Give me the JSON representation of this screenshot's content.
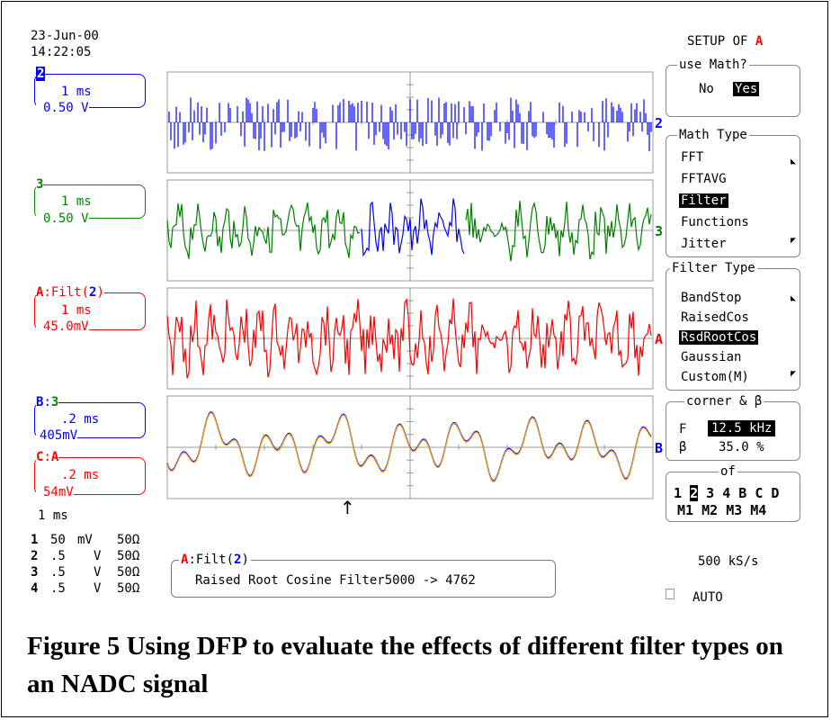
{
  "header": {
    "date": "23-Jun-00",
    "time": "14:22:05"
  },
  "setup": {
    "prefix": "SETUP OF",
    "channel": "A"
  },
  "colors": {
    "ch2": "#0000ff",
    "ch3": "#008000",
    "chA": "#ff0000",
    "chB": "#0000ff",
    "chC": "#ff0000",
    "math_overlay": "#e8a020"
  },
  "traces": [
    {
      "id": "2",
      "time": "1 ms",
      "volts": "0.50 V",
      "marker": "2"
    },
    {
      "id": "3",
      "time": "1 ms",
      "volts": "0.50 V",
      "marker": "3"
    },
    {
      "id": "A",
      "label_prefix": ":Filt(",
      "label_src": "2",
      "label_suffix": ")",
      "time": "1 ms",
      "volts": "45.0mV",
      "marker": "A"
    },
    {
      "id": "B",
      "label_sep": ":",
      "label_src": "3",
      "time": ".2 ms",
      "volts": "405mV",
      "marker": "B"
    },
    {
      "id": "C",
      "label_sep": ":",
      "label_src": "A",
      "time": ".2 ms",
      "volts": "54mV",
      "marker": "C"
    }
  ],
  "timebase": "1 ms",
  "channels": [
    {
      "n": "1",
      "v": "50",
      "unit": "mV",
      "imp": "50Ω"
    },
    {
      "n": "2",
      "v": ".5",
      "unit": "V",
      "imp": "50Ω"
    },
    {
      "n": "3",
      "v": ".5",
      "unit": "V",
      "imp": "50Ω"
    },
    {
      "n": "4",
      "v": ".5",
      "unit": "V",
      "imp": "50Ω"
    }
  ],
  "menus": {
    "use_math": {
      "title": "use Math?",
      "options": [
        "No",
        "Yes"
      ],
      "selected": "Yes"
    },
    "math_type": {
      "title": "Math Type",
      "items": [
        "FFT",
        "FFTAVG",
        "Filter",
        "Functions",
        "Jitter"
      ],
      "selected": "Filter"
    },
    "filter_type": {
      "title": "Filter Type",
      "items": [
        "BandStop",
        "RaisedCos",
        "RsdRootCos",
        "Gaussian",
        "Custom(M)"
      ],
      "selected": "RsdRootCos"
    },
    "corner": {
      "title": "corner & β",
      "f_label": "F",
      "f_value": "12.5 kHz",
      "b_label": "β",
      "b_value": "35.0 %"
    },
    "of": {
      "title": "of",
      "row1": [
        "1",
        "2",
        "3",
        "4",
        "B",
        "C",
        "D"
      ],
      "row2": [
        "M1",
        "M2",
        "M3",
        "M4"
      ],
      "selected": "2"
    }
  },
  "info_box": {
    "label": "A",
    "text_a": ":Filt(",
    "text_src": "2",
    "text_b": ")",
    "line2": "Raised Root Cosine Filter5000 -> 4762"
  },
  "sample_rate": "500 kS/s",
  "trigger_mode": "AUTO",
  "trigger_arrow": "↑",
  "caption": "Figure 5 Using DFP to evaluate the effects of different filter types on an NADC signal"
}
